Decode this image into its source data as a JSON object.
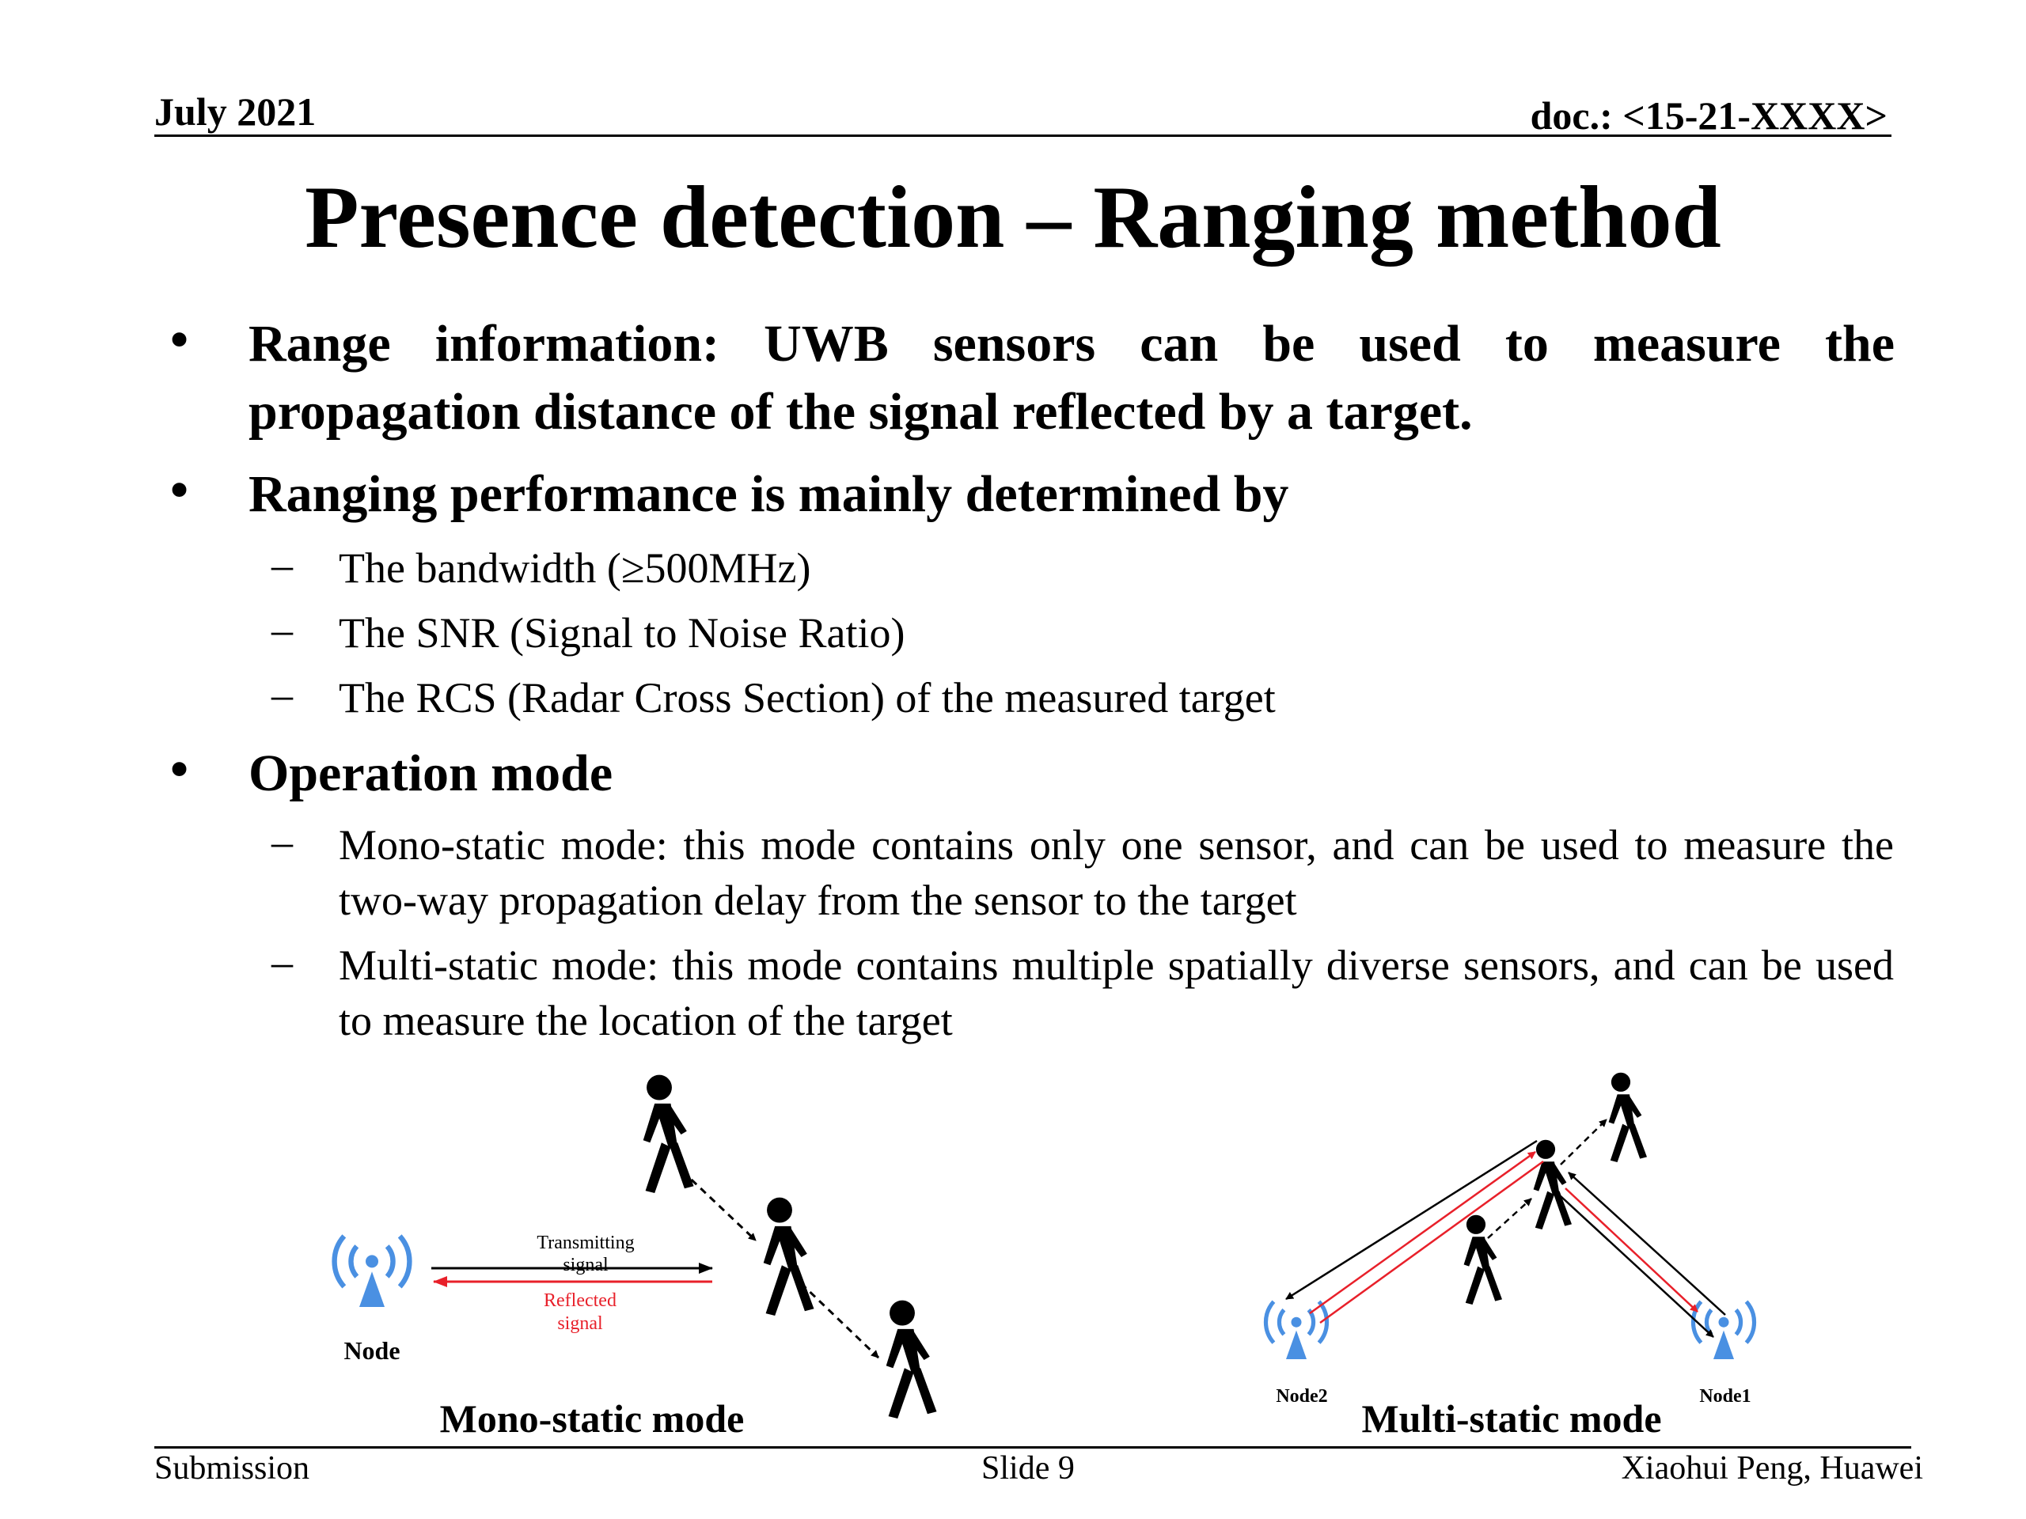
{
  "header": {
    "date": "July 2021",
    "doc": "doc.: <15-21-XXXX>"
  },
  "title": "Presence detection – Ranging method",
  "bullets": [
    {
      "text": "Range information: UWB sensors can be used to measure the propagation distance of the signal reflected by a target."
    },
    {
      "text": "Ranging performance is mainly determined by",
      "subs": [
        "The bandwidth (≥500MHz)",
        "The SNR (Signal to Noise Ratio)",
        "The RCS (Radar Cross Section) of the measured target"
      ]
    },
    {
      "text": "Operation mode",
      "subs": [
        "Mono-static mode:  this mode contains only one sensor, and can be used to measure the two-way propagation delay from the sensor to the target",
        "Multi-static mode: this mode contains multiple spatially diverse sensors, and can be used to measure the location of the target"
      ]
    }
  ],
  "figure": {
    "mono": {
      "caption": "Mono-static mode",
      "node_label": "Node",
      "tx_label_1": "Transmitting",
      "tx_label_2": "signal",
      "rx_label_1": "Reflected",
      "rx_label_2": "signal"
    },
    "multi": {
      "caption": "Multi-static mode",
      "node2_label": "Node2",
      "node1_label": "Node1"
    },
    "colors": {
      "antenna": "#4a90e2",
      "reflected": "#e8202a",
      "transmit": "#000000"
    }
  },
  "footer": {
    "left": "Submission",
    "center": "Slide 9",
    "right": "Xiaohui Peng, Huawei"
  }
}
